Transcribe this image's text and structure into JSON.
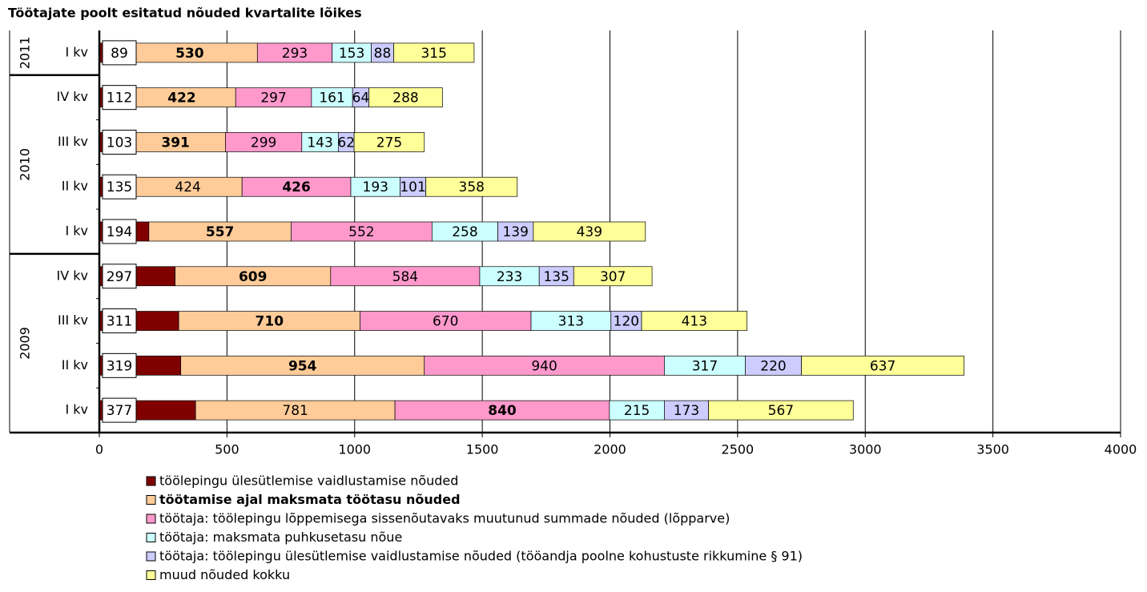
{
  "chart_data": {
    "type": "stacked-barh",
    "title": "Töötajate poolt esitatud nõuded kvartalite lõikes",
    "categories": [
      "I kv",
      "II kv",
      "III kv",
      "IV kv",
      "I kv",
      "II kv",
      "III kv",
      "IV kv",
      "I kv"
    ],
    "groups": [
      {
        "name": "2009",
        "size": 4
      },
      {
        "name": "2010",
        "size": 4
      },
      {
        "name": "2011",
        "size": 1
      }
    ],
    "series": [
      {
        "name": "töölepingu ülesütlemise vaidlustamise nõuded",
        "color": "#800000",
        "values": [
          377,
          319,
          311,
          297,
          194,
          135,
          103,
          112,
          89
        ]
      },
      {
        "name": "töötamise ajal maksmata töötasu nõuded",
        "color": "#FFCC99",
        "values": [
          781,
          954,
          710,
          609,
          557,
          424,
          391,
          422,
          530
        ]
      },
      {
        "name": "töötaja: töölepingu lõppemisega sissenõutavaks muutunud summade nõuded (lõpparve)",
        "color": "#FF99CC",
        "values": [
          840,
          940,
          670,
          584,
          552,
          426,
          299,
          297,
          293
        ]
      },
      {
        "name": "töötaja: maksmata puhkusetasu nõue",
        "color": "#CCFFFF",
        "values": [
          215,
          317,
          313,
          233,
          258,
          193,
          143,
          161,
          153
        ]
      },
      {
        "name": "töötaja: töölepingu ülesütlemise vaidlustamise nõuded (tööandja poolne kohustuste rikkumine § 91)",
        "color": "#CCCCFF",
        "values": [
          173,
          220,
          120,
          135,
          139,
          101,
          62,
          64,
          88
        ]
      },
      {
        "name": "muud nõuded kokku",
        "color": "#FFFF99",
        "values": [
          567,
          637,
          413,
          307,
          439,
          358,
          275,
          288,
          315
        ]
      }
    ],
    "xlim": [
      0,
      4000
    ],
    "xticks": [
      0,
      500,
      1000,
      1500,
      2000,
      2500,
      3000,
      3500,
      4000
    ],
    "grid": true
  }
}
